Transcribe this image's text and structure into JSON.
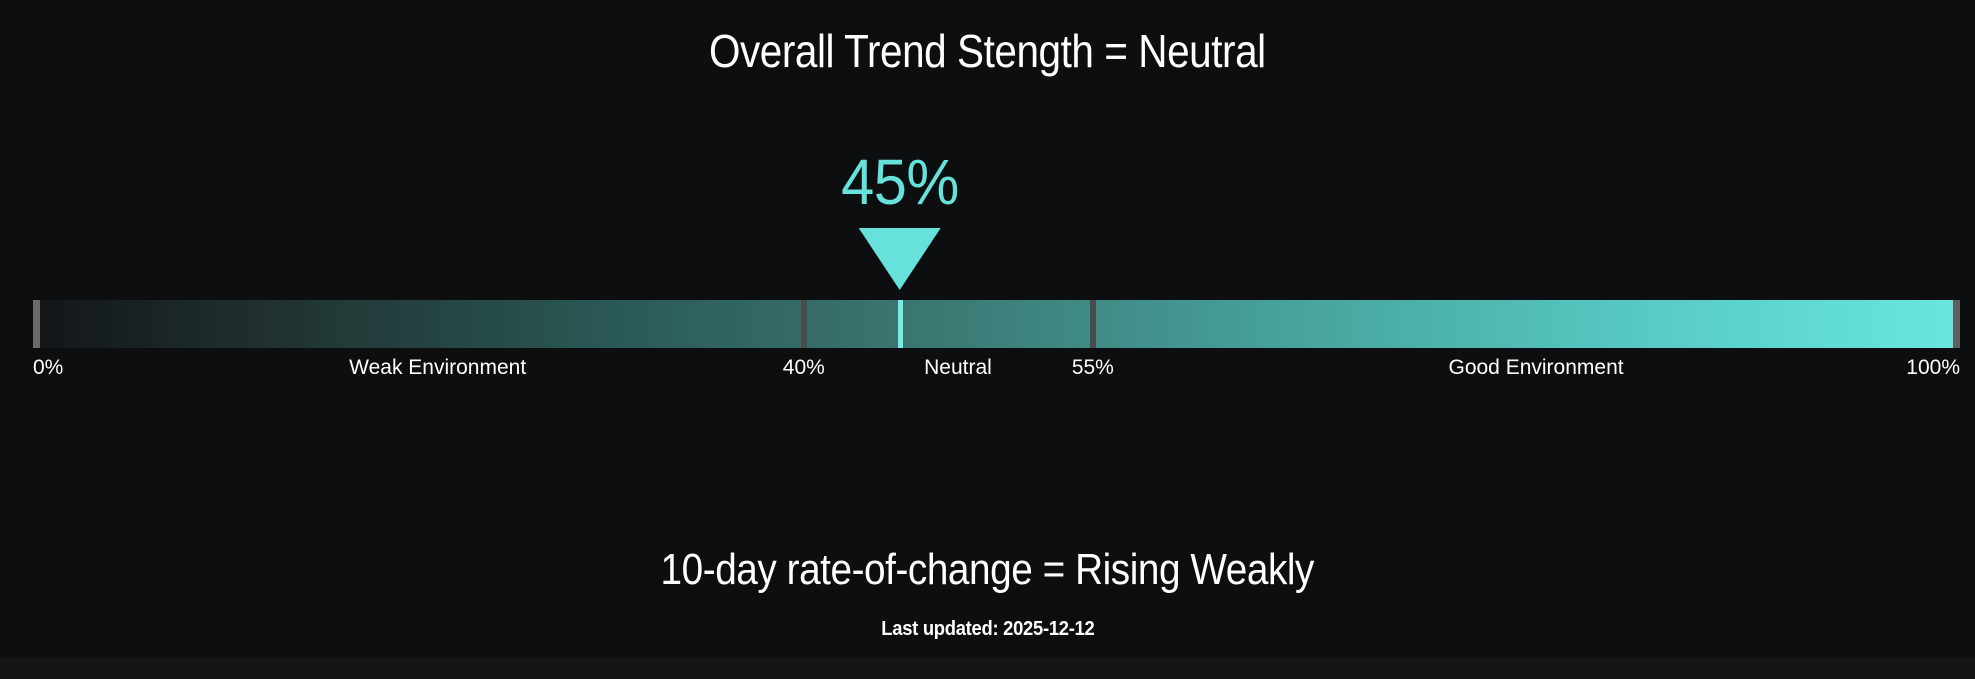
{
  "page": {
    "background": "#0d0e10",
    "footer_strip_color": "#141416"
  },
  "header": {
    "title": "Overall Trend Stength = Neutral"
  },
  "gauge": {
    "value_label": "45%",
    "value_percent": 45,
    "min_percent": 0,
    "max_percent": 100,
    "threshold_low_percent": 40,
    "threshold_high_percent": 55,
    "marker_color": "#66e2da",
    "marker_line_color": "#72ece4",
    "bar_gradient": [
      "#131518",
      "#1e2c2b",
      "#2a5955",
      "#3a7470",
      "#47a49e",
      "#58cdc6",
      "#68e7df"
    ],
    "axis_labels": [
      {
        "text": "0%"
      },
      {
        "text": "Weak Environment"
      },
      {
        "text": "40%"
      },
      {
        "text": "Neutral"
      },
      {
        "text": "55%"
      },
      {
        "text": "Good Environment"
      },
      {
        "text": "100%"
      }
    ]
  },
  "footer": {
    "subtitle": "10-day rate-of-change = Rising Weakly",
    "last_updated": "Last updated: 2025-12-12"
  },
  "chart_data": {
    "type": "gauge",
    "title": "Overall Trend Stength = Neutral",
    "subtitle": "10-day rate-of-change = Rising Weakly",
    "value": 45,
    "value_label": "45%",
    "axis_min": 0,
    "axis_max": 100,
    "tick_labels": [
      "0%",
      "40%",
      "55%",
      "100%"
    ],
    "zones": [
      {
        "label": "Weak Environment",
        "from": 0,
        "to": 40
      },
      {
        "label": "Neutral",
        "from": 40,
        "to": 55
      },
      {
        "label": "Good Environment",
        "from": 55,
        "to": 100
      }
    ],
    "marker_color": "#66e2da",
    "bar_style": "horizontal linear gauge, dark-to-teal gradient left to right",
    "last_updated": "2025-12-12",
    "legend_position": "none",
    "grid": false
  }
}
